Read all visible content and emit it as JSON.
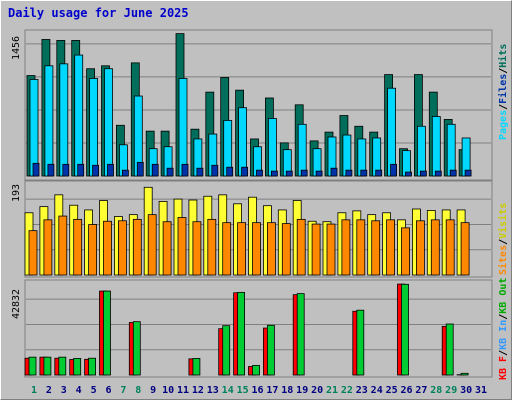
{
  "title": "Daily usage for June 2025",
  "colors": {
    "background": "#c0c0c0",
    "panel": "#c0c0c0",
    "hits": "#006e5a",
    "files": "#00d8ff",
    "pages": "#0033aa",
    "visits": "#ffff33",
    "sites": "#ff8800",
    "kbf": "#ff0000",
    "kbin": "#00aa00",
    "kbout": "#00cc33",
    "title": "#0000cc",
    "weekend": "#00805c",
    "weekday": "#000080"
  },
  "chart_data": [
    {
      "type": "bar",
      "panel": "hits-files-pages",
      "ymax_label": "1456",
      "ylim": [
        0,
        1456
      ],
      "legend": [
        "Pages",
        "Files",
        "Hits"
      ],
      "categories": [
        "1",
        "2",
        "3",
        "4",
        "5",
        "6",
        "7",
        "8",
        "9",
        "10",
        "11",
        "12",
        "13",
        "14",
        "15",
        "16",
        "17",
        "18",
        "19",
        "20",
        "21",
        "22",
        "23",
        "24",
        "25",
        "26",
        "27",
        "28",
        "29",
        "30",
        "31"
      ],
      "series": [
        {
          "name": "Hits",
          "values": [
            1030,
            1400,
            1390,
            1390,
            1100,
            1130,
            520,
            1160,
            460,
            460,
            1460,
            480,
            860,
            1010,
            880,
            380,
            800,
            340,
            730,
            360,
            450,
            620,
            510,
            450,
            1040,
            280,
            1040,
            860,
            580,
            270,
            0
          ]
        },
        {
          "name": "Files",
          "values": [
            990,
            1130,
            1150,
            1240,
            1000,
            1100,
            320,
            820,
            280,
            300,
            1000,
            380,
            430,
            570,
            700,
            300,
            590,
            270,
            530,
            280,
            400,
            420,
            380,
            390,
            900,
            260,
            510,
            610,
            530,
            390,
            0
          ]
        },
        {
          "name": "Pages",
          "values": [
            130,
            120,
            120,
            120,
            110,
            120,
            60,
            140,
            120,
            80,
            120,
            80,
            110,
            90,
            90,
            60,
            50,
            50,
            60,
            50,
            80,
            60,
            60,
            60,
            120,
            40,
            50,
            50,
            60,
            60,
            0
          ]
        }
      ]
    },
    {
      "type": "bar",
      "panel": "visits-sites",
      "ymax_label": "193",
      "ylim": [
        0,
        193
      ],
      "legend": [
        "Sites",
        "Visits"
      ],
      "categories": [
        "1",
        "2",
        "3",
        "4",
        "5",
        "6",
        "7",
        "8",
        "9",
        "10",
        "11",
        "12",
        "13",
        "14",
        "15",
        "16",
        "17",
        "18",
        "19",
        "20",
        "21",
        "22",
        "23",
        "24",
        "25",
        "26",
        "27",
        "28",
        "29",
        "30",
        "31"
      ],
      "series": [
        {
          "name": "Visits",
          "values": [
            132,
            145,
            170,
            148,
            138,
            158,
            124,
            128,
            186,
            156,
            161,
            159,
            167,
            170,
            151,
            165,
            147,
            138,
            158,
            114,
            113,
            132,
            136,
            128,
            132,
            117,
            140,
            137,
            138,
            138,
            0
          ]
        },
        {
          "name": "Sites",
          "values": [
            94,
            117,
            125,
            118,
            107,
            114,
            115,
            118,
            128,
            113,
            122,
            113,
            118,
            111,
            111,
            111,
            111,
            109,
            118,
            108,
            108,
            117,
            117,
            115,
            117,
            100,
            115,
            117,
            117,
            111,
            0
          ]
        }
      ]
    },
    {
      "type": "bar",
      "panel": "kbytes",
      "ymax_label": "42832",
      "ylim": [
        0,
        42832
      ],
      "legend": [
        "KB F",
        "KB In",
        "KB Out"
      ],
      "categories": [
        "1",
        "2",
        "3",
        "4",
        "5",
        "6",
        "7",
        "8",
        "9",
        "10",
        "11",
        "12",
        "13",
        "14",
        "15",
        "16",
        "17",
        "18",
        "19",
        "20",
        "21",
        "22",
        "23",
        "24",
        "25",
        "26",
        "27",
        "28",
        "29",
        "30",
        "31"
      ],
      "series": [
        {
          "name": "KB F",
          "values": [
            7900,
            8400,
            7900,
            7300,
            7400,
            39500,
            0,
            24700,
            0,
            0,
            0,
            7600,
            0,
            21800,
            38700,
            4000,
            22100,
            0,
            37800,
            0,
            0,
            0,
            30000,
            0,
            0,
            42800,
            0,
            0,
            22900,
            150,
            0
          ]
        },
        {
          "name": "KB In",
          "values": [
            0,
            0,
            0,
            0,
            0,
            0,
            0,
            0,
            0,
            0,
            0,
            0,
            0,
            0,
            0,
            0,
            0,
            0,
            0,
            0,
            0,
            0,
            0,
            0,
            0,
            0,
            0,
            0,
            0,
            0,
            0
          ]
        },
        {
          "name": "KB Out",
          "values": [
            8400,
            8400,
            8400,
            7800,
            7900,
            39500,
            0,
            25100,
            0,
            0,
            0,
            7800,
            0,
            23200,
            38900,
            4500,
            23400,
            0,
            38300,
            0,
            0,
            0,
            30500,
            0,
            0,
            42700,
            0,
            0,
            24000,
            800,
            0
          ]
        }
      ]
    }
  ],
  "weekend_days": [
    "1",
    "7",
    "8",
    "14",
    "15",
    "21",
    "22",
    "28",
    "29"
  ]
}
